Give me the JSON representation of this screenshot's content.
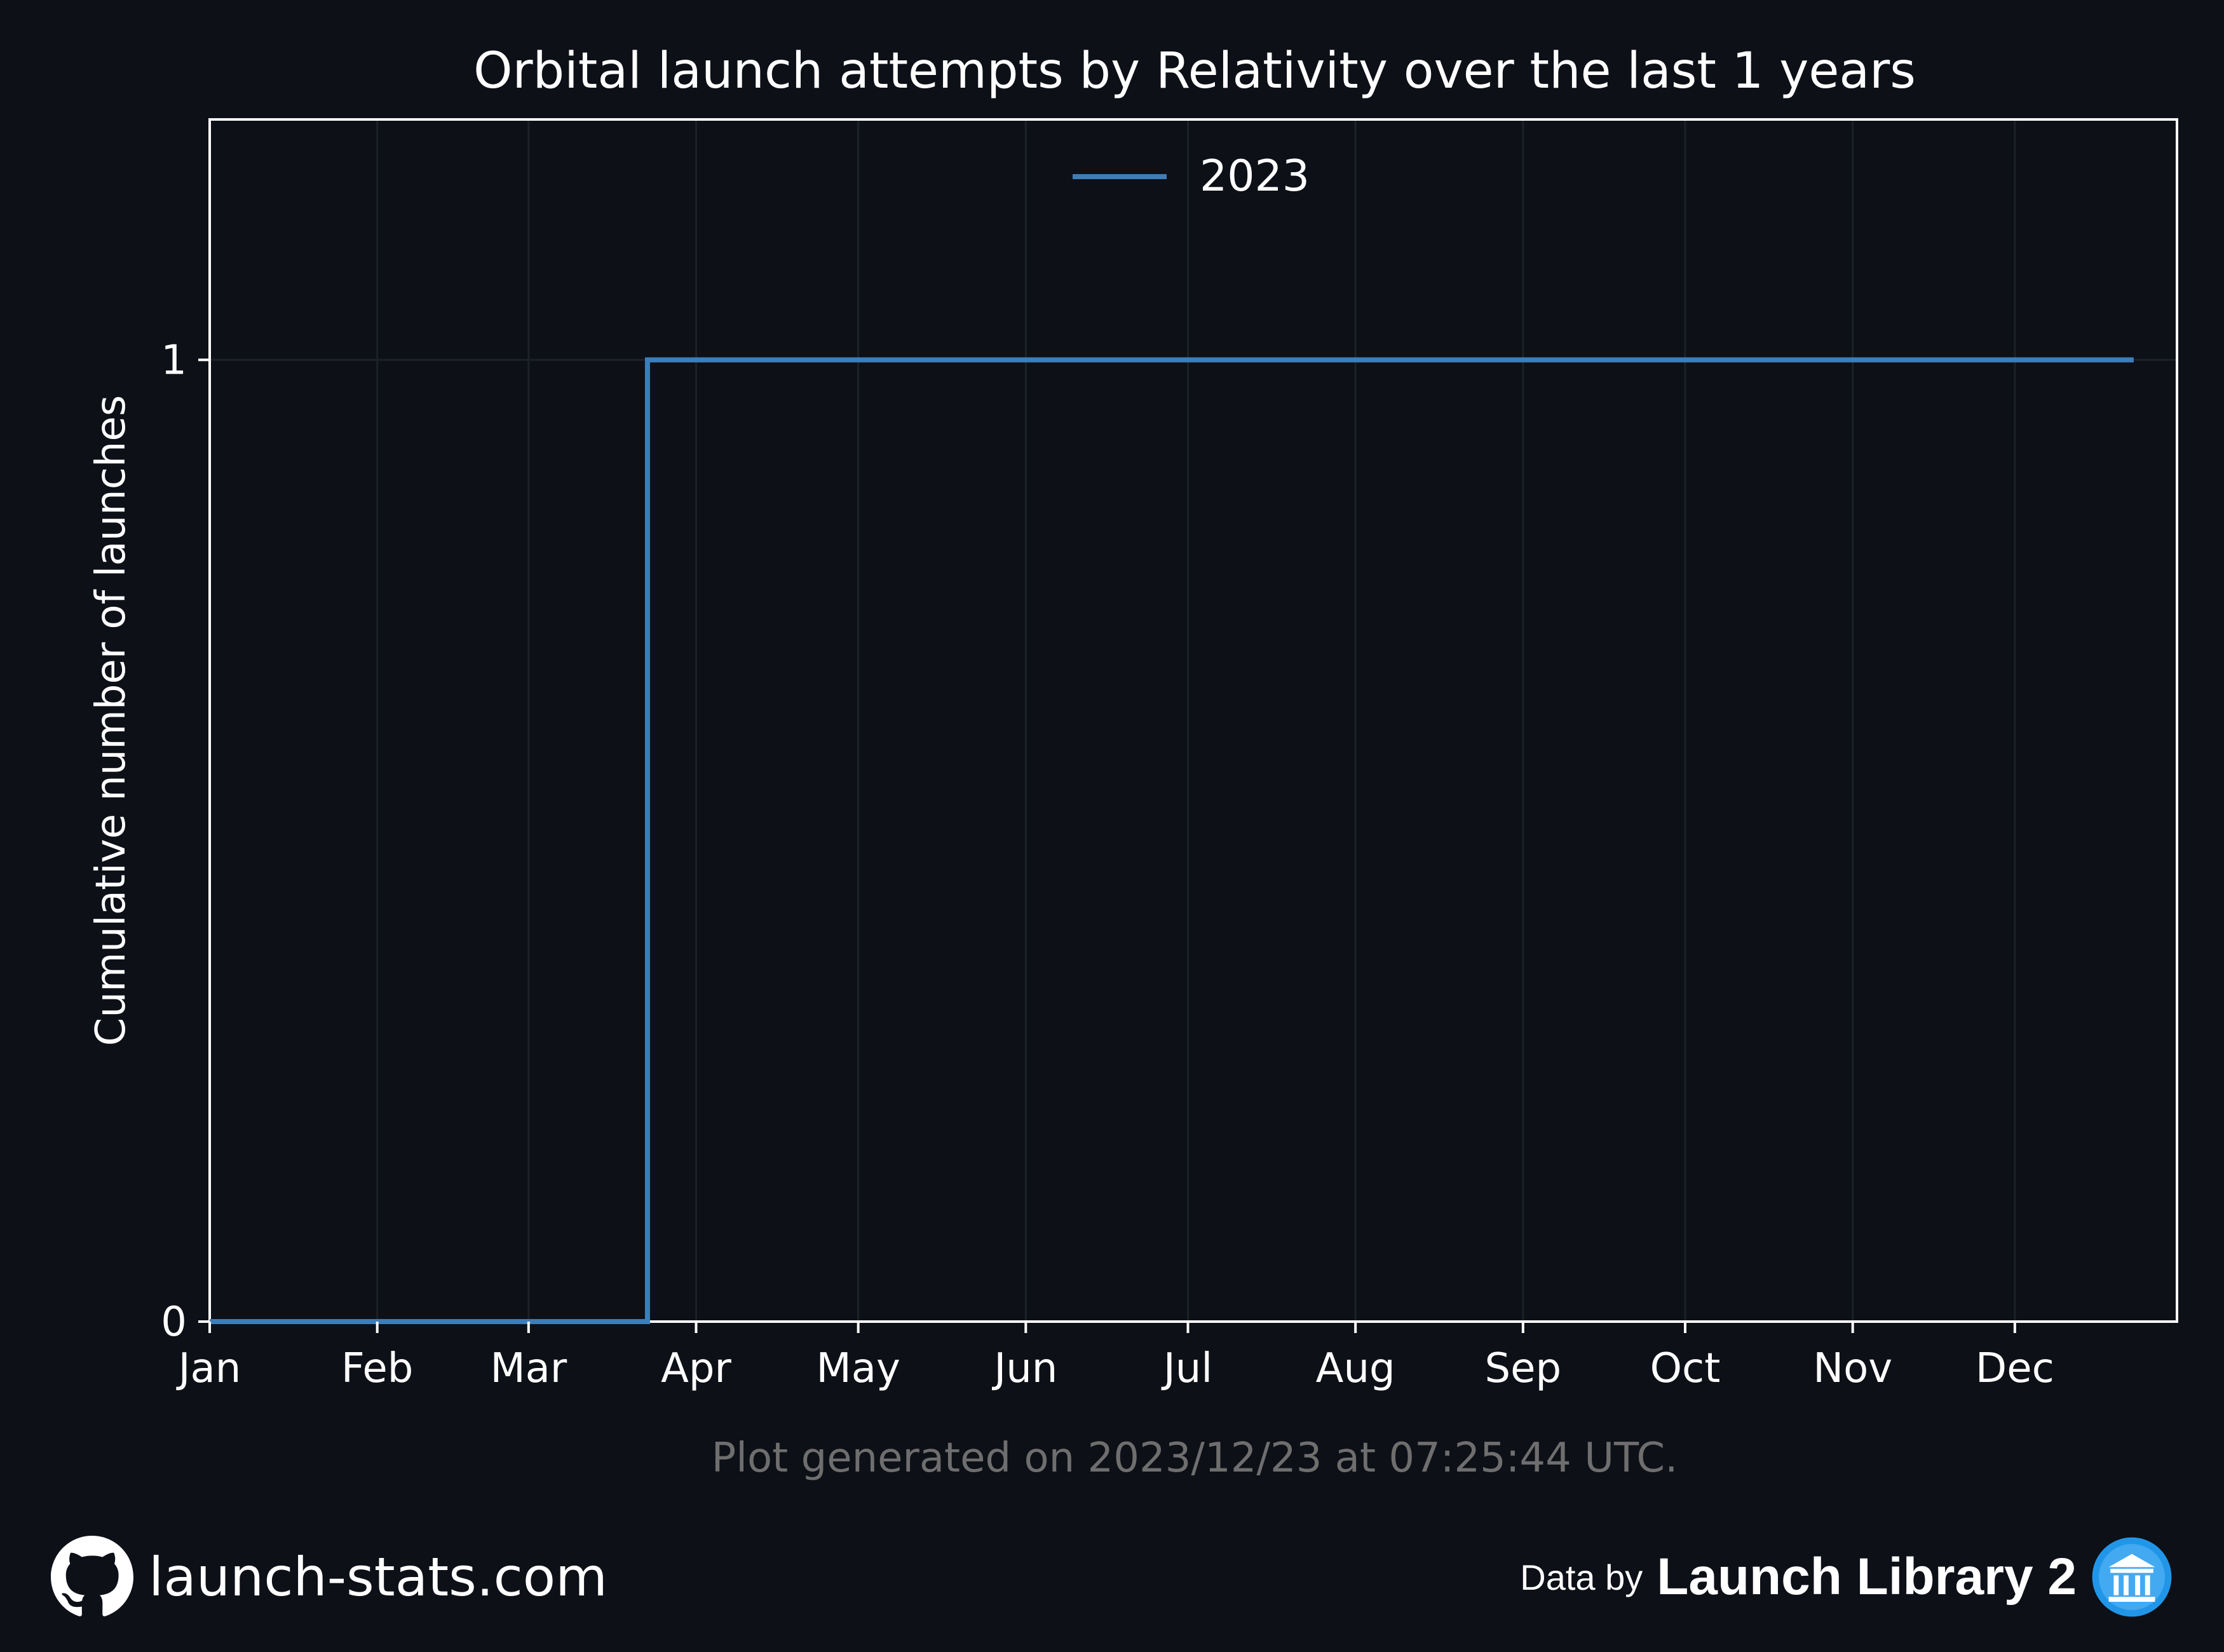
{
  "chart_data": {
    "type": "line",
    "step": true,
    "title": "Orbital launch attempts by Relativity over the last 1 years",
    "xlabel": "",
    "ylabel": "Cumulative number of launches",
    "x_tick_labels": [
      "Jan",
      "Feb",
      "Mar",
      "Apr",
      "May",
      "Jun",
      "Jul",
      "Aug",
      "Sep",
      "Oct",
      "Nov",
      "Dec"
    ],
    "xlim": [
      "2023-01-01",
      "2023-12-31"
    ],
    "y_ticks": [
      0,
      1
    ],
    "ylim": [
      0,
      1.25
    ],
    "grid": true,
    "legend_position": "upper center",
    "series": [
      {
        "name": "2023",
        "color": "#3d7db8",
        "x": [
          "2023-01-01",
          "2023-03-23",
          "2023-12-23"
        ],
        "y": [
          0,
          1,
          1
        ]
      }
    ]
  },
  "footnote": "Plot generated on 2023/12/23 at 07:25:44 UTC.",
  "footer": {
    "site": "launch-stats.com",
    "data_by_prefix": "Data by",
    "data_source": "Launch Library 2",
    "github_icon": "github-icon",
    "ll2_icon": "launch-library-logo-icon"
  },
  "colors": {
    "background": "#0d1017",
    "text": "#ffffff",
    "muted_text": "#6e6e6e",
    "grid": "#1c2128",
    "series": "#3d7db8"
  }
}
